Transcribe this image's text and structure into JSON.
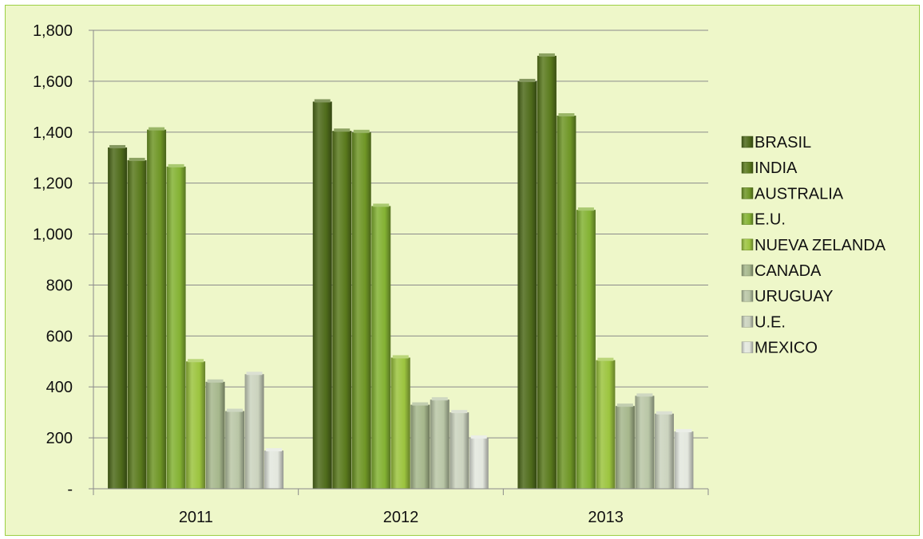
{
  "chart_data": {
    "type": "bar",
    "title": "",
    "xlabel": "",
    "ylabel": "",
    "categories": [
      "2011",
      "2012",
      "2013"
    ],
    "ylim": [
      0,
      1800
    ],
    "yticks": [
      {
        "value": 0,
        "label": "-"
      },
      {
        "value": 200,
        "label": "200"
      },
      {
        "value": 400,
        "label": "400"
      },
      {
        "value": 600,
        "label": "600"
      },
      {
        "value": 800,
        "label": "800"
      },
      {
        "value": 1000,
        "label": "1,000"
      },
      {
        "value": 1200,
        "label": "1,200"
      },
      {
        "value": 1400,
        "label": "1,400"
      },
      {
        "value": 1600,
        "label": "1,600"
      },
      {
        "value": 1800,
        "label": "1,800"
      }
    ],
    "grid": true,
    "legend_position": "right",
    "series": [
      {
        "name": "BRASIL",
        "values": [
          1340,
          1520,
          1600
        ],
        "color": "#4f6b1b"
      },
      {
        "name": "INDIA",
        "values": [
          1290,
          1405,
          1700
        ],
        "color": "#5a7a1d"
      },
      {
        "name": "AUSTRALIA",
        "values": [
          1410,
          1400,
          1465
        ],
        "color": "#6f9626"
      },
      {
        "name": "E.U.",
        "values": [
          1265,
          1110,
          1095
        ],
        "color": "#84b233"
      },
      {
        "name": "NUEVA ZELANDA",
        "values": [
          500,
          515,
          505
        ],
        "color": "#9cc43f"
      },
      {
        "name": "CANADA",
        "values": [
          420,
          330,
          325
        ],
        "color": "#a6b78c"
      },
      {
        "name": "URUGUAY",
        "values": [
          305,
          350,
          365
        ],
        "color": "#b9c6a6"
      },
      {
        "name": "U.E.",
        "values": [
          450,
          300,
          295
        ],
        "color": "#cbd3be"
      },
      {
        "name": "MEXICO",
        "values": [
          150,
          200,
          225
        ],
        "color": "#e3e7de"
      }
    ]
  }
}
